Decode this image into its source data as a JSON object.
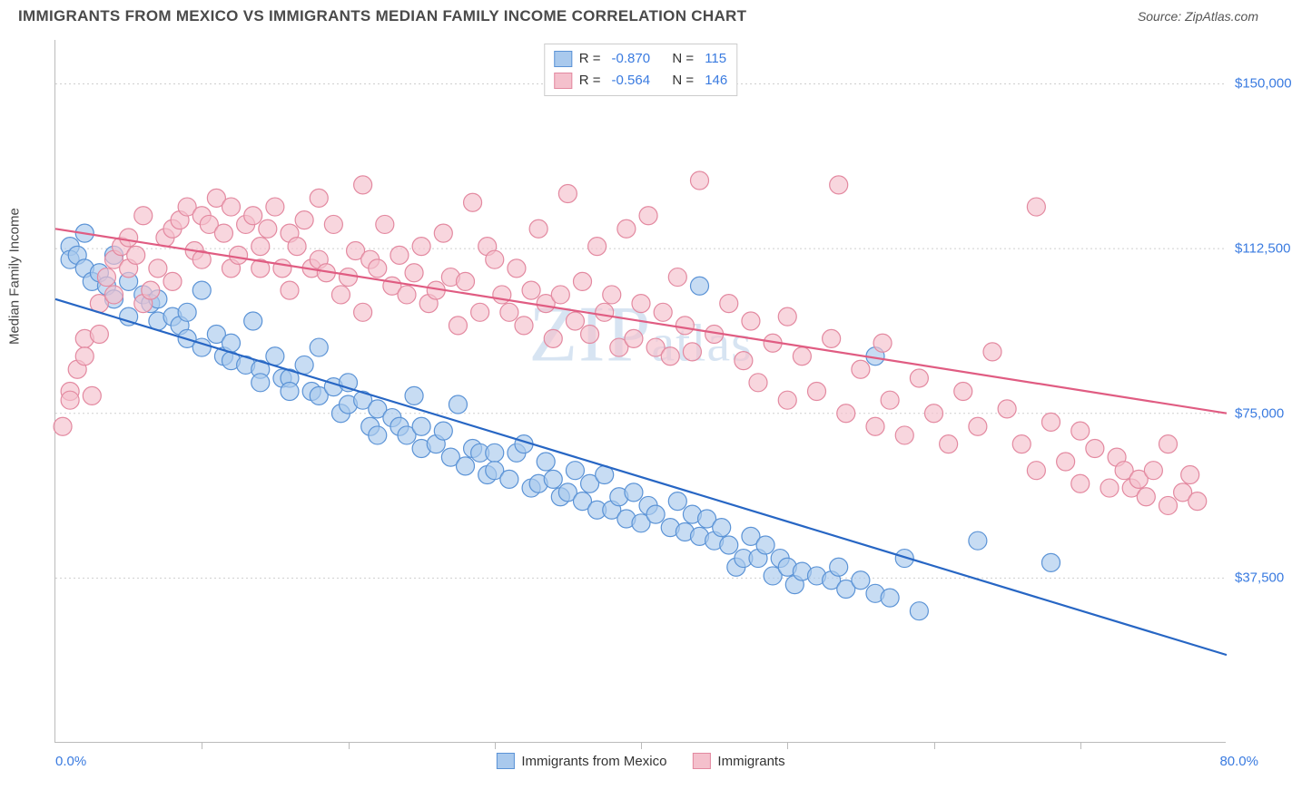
{
  "header": {
    "title": "IMMIGRANTS FROM MEXICO VS IMMIGRANTS MEDIAN FAMILY INCOME CORRELATION CHART",
    "source": "Source: ZipAtlas.com"
  },
  "watermark": {
    "zip": "ZIP",
    "atlas": "atlas"
  },
  "chart": {
    "type": "scatter",
    "yaxis_label": "Median Family Income",
    "xlim": [
      0,
      80
    ],
    "ylim": [
      0,
      160000
    ],
    "xaxis_min_label": "0.0%",
    "xaxis_max_label": "80.0%",
    "xtick_positions": [
      10,
      20,
      30,
      40,
      50,
      60,
      70
    ],
    "ytick_positions": [
      37500,
      75000,
      112500,
      150000
    ],
    "ytick_labels": [
      "$37,500",
      "$75,000",
      "$112,500",
      "$150,000"
    ],
    "grid_color": "#cfcfcf",
    "background_color": "#ffffff",
    "axis_color": "#bbbbbb",
    "watermark_color": "#b8cfe8",
    "series": [
      {
        "name": "Immigrants from Mexico",
        "color_fill": "#a9c9ed",
        "color_stroke": "#5b93d6",
        "trend_color": "#2766c4",
        "marker_radius": 10,
        "marker_opacity": 0.65,
        "r": "-0.870",
        "n": "115",
        "trendline": {
          "x1": 0,
          "y1": 101000,
          "x2": 80,
          "y2": 20000
        },
        "points": [
          [
            1,
            113000
          ],
          [
            1,
            110000
          ],
          [
            1.5,
            111000
          ],
          [
            2,
            108000
          ],
          [
            2,
            116000
          ],
          [
            2.5,
            105000
          ],
          [
            3,
            107000
          ],
          [
            3.5,
            104000
          ],
          [
            4,
            111000
          ],
          [
            4,
            101000
          ],
          [
            5,
            105000
          ],
          [
            5,
            97000
          ],
          [
            6,
            102000
          ],
          [
            6.5,
            100000
          ],
          [
            7,
            96000
          ],
          [
            7,
            101000
          ],
          [
            8,
            97000
          ],
          [
            8.5,
            95000
          ],
          [
            9,
            98000
          ],
          [
            9,
            92000
          ],
          [
            10,
            90000
          ],
          [
            10,
            103000
          ],
          [
            11,
            93000
          ],
          [
            11.5,
            88000
          ],
          [
            12,
            91000
          ],
          [
            12,
            87000
          ],
          [
            13,
            86000
          ],
          [
            13.5,
            96000
          ],
          [
            14,
            85000
          ],
          [
            14,
            82000
          ],
          [
            15,
            88000
          ],
          [
            15.5,
            83000
          ],
          [
            16,
            83000
          ],
          [
            16,
            80000
          ],
          [
            17,
            86000
          ],
          [
            17.5,
            80000
          ],
          [
            18,
            79000
          ],
          [
            18,
            90000
          ],
          [
            19,
            81000
          ],
          [
            19.5,
            75000
          ],
          [
            20,
            77000
          ],
          [
            20,
            82000
          ],
          [
            21,
            78000
          ],
          [
            21.5,
            72000
          ],
          [
            22,
            76000
          ],
          [
            22,
            70000
          ],
          [
            23,
            74000
          ],
          [
            23.5,
            72000
          ],
          [
            24,
            70000
          ],
          [
            24.5,
            79000
          ],
          [
            25,
            72000
          ],
          [
            25,
            67000
          ],
          [
            26,
            68000
          ],
          [
            26.5,
            71000
          ],
          [
            27,
            65000
          ],
          [
            27.5,
            77000
          ],
          [
            28,
            63000
          ],
          [
            28.5,
            67000
          ],
          [
            29,
            66000
          ],
          [
            29.5,
            61000
          ],
          [
            30,
            66000
          ],
          [
            30,
            62000
          ],
          [
            31,
            60000
          ],
          [
            31.5,
            66000
          ],
          [
            32,
            68000
          ],
          [
            32.5,
            58000
          ],
          [
            33,
            59000
          ],
          [
            33.5,
            64000
          ],
          [
            34,
            60000
          ],
          [
            34.5,
            56000
          ],
          [
            35,
            57000
          ],
          [
            35.5,
            62000
          ],
          [
            36,
            55000
          ],
          [
            36.5,
            59000
          ],
          [
            37,
            53000
          ],
          [
            37.5,
            61000
          ],
          [
            38,
            53000
          ],
          [
            38.5,
            56000
          ],
          [
            39,
            51000
          ],
          [
            39.5,
            57000
          ],
          [
            40,
            50000
          ],
          [
            40.5,
            54000
          ],
          [
            41,
            52000
          ],
          [
            42,
            49000
          ],
          [
            42.5,
            55000
          ],
          [
            43,
            48000
          ],
          [
            43.5,
            52000
          ],
          [
            44,
            47000
          ],
          [
            44.5,
            51000
          ],
          [
            45,
            46000
          ],
          [
            45.5,
            49000
          ],
          [
            46,
            45000
          ],
          [
            46.5,
            40000
          ],
          [
            47,
            42000
          ],
          [
            47.5,
            47000
          ],
          [
            48,
            42000
          ],
          [
            48.5,
            45000
          ],
          [
            49,
            38000
          ],
          [
            49.5,
            42000
          ],
          [
            50,
            40000
          ],
          [
            50.5,
            36000
          ],
          [
            51,
            39000
          ],
          [
            44,
            104000
          ],
          [
            52,
            38000
          ],
          [
            53,
            37000
          ],
          [
            53.5,
            40000
          ],
          [
            54,
            35000
          ],
          [
            55,
            37000
          ],
          [
            56,
            34000
          ],
          [
            57,
            33000
          ],
          [
            59,
            30000
          ],
          [
            63,
            46000
          ],
          [
            68,
            41000
          ],
          [
            56,
            88000
          ],
          [
            58,
            42000
          ]
        ]
      },
      {
        "name": "Immigrants",
        "color_fill": "#f4c0cc",
        "color_stroke": "#e389a0",
        "trend_color": "#e05c82",
        "marker_radius": 10,
        "marker_opacity": 0.65,
        "r": "-0.564",
        "n": "146",
        "trendline": {
          "x1": 0,
          "y1": 117000,
          "x2": 80,
          "y2": 75000
        },
        "points": [
          [
            0.5,
            72000
          ],
          [
            1,
            80000
          ],
          [
            1,
            78000
          ],
          [
            1.5,
            85000
          ],
          [
            2,
            92000
          ],
          [
            2,
            88000
          ],
          [
            2.5,
            79000
          ],
          [
            3,
            100000
          ],
          [
            3,
            93000
          ],
          [
            3.5,
            106000
          ],
          [
            4,
            110000
          ],
          [
            4,
            102000
          ],
          [
            4.5,
            113000
          ],
          [
            5,
            108000
          ],
          [
            5,
            115000
          ],
          [
            5.5,
            111000
          ],
          [
            6,
            100000
          ],
          [
            6,
            120000
          ],
          [
            6.5,
            103000
          ],
          [
            7,
            108000
          ],
          [
            7.5,
            115000
          ],
          [
            8,
            117000
          ],
          [
            8,
            105000
          ],
          [
            8.5,
            119000
          ],
          [
            9,
            122000
          ],
          [
            9.5,
            112000
          ],
          [
            10,
            120000
          ],
          [
            10,
            110000
          ],
          [
            10.5,
            118000
          ],
          [
            11,
            124000
          ],
          [
            11.5,
            116000
          ],
          [
            12,
            108000
          ],
          [
            12,
            122000
          ],
          [
            12.5,
            111000
          ],
          [
            13,
            118000
          ],
          [
            13.5,
            120000
          ],
          [
            14,
            113000
          ],
          [
            14,
            108000
          ],
          [
            14.5,
            117000
          ],
          [
            15,
            122000
          ],
          [
            15.5,
            108000
          ],
          [
            16,
            103000
          ],
          [
            16,
            116000
          ],
          [
            16.5,
            113000
          ],
          [
            17,
            119000
          ],
          [
            17.5,
            108000
          ],
          [
            18,
            124000
          ],
          [
            18,
            110000
          ],
          [
            18.5,
            107000
          ],
          [
            19,
            118000
          ],
          [
            19.5,
            102000
          ],
          [
            20,
            106000
          ],
          [
            20.5,
            112000
          ],
          [
            21,
            127000
          ],
          [
            21,
            98000
          ],
          [
            21.5,
            110000
          ],
          [
            22,
            108000
          ],
          [
            22.5,
            118000
          ],
          [
            23,
            104000
          ],
          [
            23.5,
            111000
          ],
          [
            24,
            102000
          ],
          [
            24.5,
            107000
          ],
          [
            25,
            113000
          ],
          [
            25.5,
            100000
          ],
          [
            26,
            103000
          ],
          [
            26.5,
            116000
          ],
          [
            27,
            106000
          ],
          [
            27.5,
            95000
          ],
          [
            28,
            105000
          ],
          [
            28.5,
            123000
          ],
          [
            29,
            98000
          ],
          [
            29.5,
            113000
          ],
          [
            30,
            110000
          ],
          [
            30.5,
            102000
          ],
          [
            31,
            98000
          ],
          [
            31.5,
            108000
          ],
          [
            32,
            95000
          ],
          [
            32.5,
            103000
          ],
          [
            33,
            117000
          ],
          [
            33.5,
            100000
          ],
          [
            34,
            92000
          ],
          [
            34.5,
            102000
          ],
          [
            35,
            125000
          ],
          [
            35.5,
            96000
          ],
          [
            36,
            105000
          ],
          [
            36.5,
            93000
          ],
          [
            37,
            113000
          ],
          [
            37.5,
            98000
          ],
          [
            38,
            102000
          ],
          [
            38.5,
            90000
          ],
          [
            39,
            117000
          ],
          [
            39.5,
            92000
          ],
          [
            40,
            100000
          ],
          [
            40.5,
            120000
          ],
          [
            41,
            90000
          ],
          [
            41.5,
            98000
          ],
          [
            42,
            88000
          ],
          [
            42.5,
            106000
          ],
          [
            43,
            95000
          ],
          [
            43.5,
            89000
          ],
          [
            44,
            128000
          ],
          [
            45,
            93000
          ],
          [
            46,
            100000
          ],
          [
            47,
            87000
          ],
          [
            47.5,
            96000
          ],
          [
            48,
            82000
          ],
          [
            49,
            91000
          ],
          [
            50,
            78000
          ],
          [
            50,
            97000
          ],
          [
            51,
            88000
          ],
          [
            52,
            80000
          ],
          [
            53,
            92000
          ],
          [
            53.5,
            127000
          ],
          [
            54,
            75000
          ],
          [
            55,
            85000
          ],
          [
            56,
            72000
          ],
          [
            56.5,
            91000
          ],
          [
            57,
            78000
          ],
          [
            58,
            70000
          ],
          [
            59,
            83000
          ],
          [
            60,
            75000
          ],
          [
            61,
            68000
          ],
          [
            62,
            80000
          ],
          [
            63,
            72000
          ],
          [
            64,
            89000
          ],
          [
            65,
            76000
          ],
          [
            66,
            68000
          ],
          [
            67,
            62000
          ],
          [
            67,
            122000
          ],
          [
            68,
            73000
          ],
          [
            69,
            64000
          ],
          [
            70,
            59000
          ],
          [
            70,
            71000
          ],
          [
            71,
            67000
          ],
          [
            72,
            58000
          ],
          [
            72.5,
            65000
          ],
          [
            73,
            62000
          ],
          [
            73.5,
            58000
          ],
          [
            74,
            60000
          ],
          [
            74.5,
            56000
          ],
          [
            75,
            62000
          ],
          [
            76,
            54000
          ],
          [
            76,
            68000
          ],
          [
            77,
            57000
          ],
          [
            77.5,
            61000
          ],
          [
            78,
            55000
          ]
        ]
      }
    ],
    "stats_box": {
      "r_label": "R =",
      "n_label": "N ="
    },
    "legend": {
      "items": [
        {
          "label": "Immigrants from Mexico",
          "fill": "#a9c9ed",
          "stroke": "#5b93d6"
        },
        {
          "label": "Immigrants",
          "fill": "#f4c0cc",
          "stroke": "#e389a0"
        }
      ]
    }
  }
}
